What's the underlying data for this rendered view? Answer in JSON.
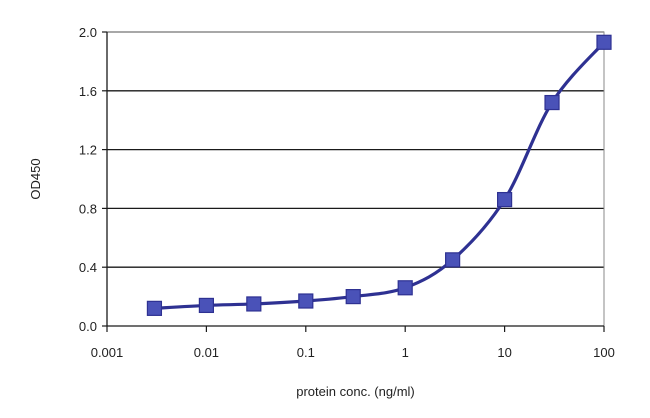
{
  "chart_data": {
    "type": "line",
    "title": "",
    "xlabel": "protein conc. (ng/ml)",
    "ylabel": "OD450",
    "xscale": "log",
    "xlim": [
      0.001,
      100
    ],
    "ylim": [
      0,
      2.0
    ],
    "x_ticks": [
      0.001,
      0.01,
      0.1,
      1,
      10,
      100
    ],
    "x_tick_labels": [
      "0.001",
      "0.01",
      "0.1",
      "1",
      "10",
      "100"
    ],
    "y_ticks": [
      0,
      0.4,
      0.8,
      1.2,
      1.6,
      2.0
    ],
    "y_tick_labels": [
      "0.0",
      "0.4",
      "0.8",
      "1.2",
      "1.6",
      "2.0"
    ],
    "grid": "horizontal",
    "legend": "none",
    "color": "#2e3192",
    "series": [
      {
        "marker": "square",
        "x": [
          0.003,
          0.01,
          0.03,
          0.1,
          0.3,
          1,
          3,
          10,
          30,
          100
        ],
        "y": [
          0.12,
          0.14,
          0.15,
          0.17,
          0.2,
          0.26,
          0.45,
          0.86,
          1.52,
          1.93
        ]
      }
    ]
  }
}
